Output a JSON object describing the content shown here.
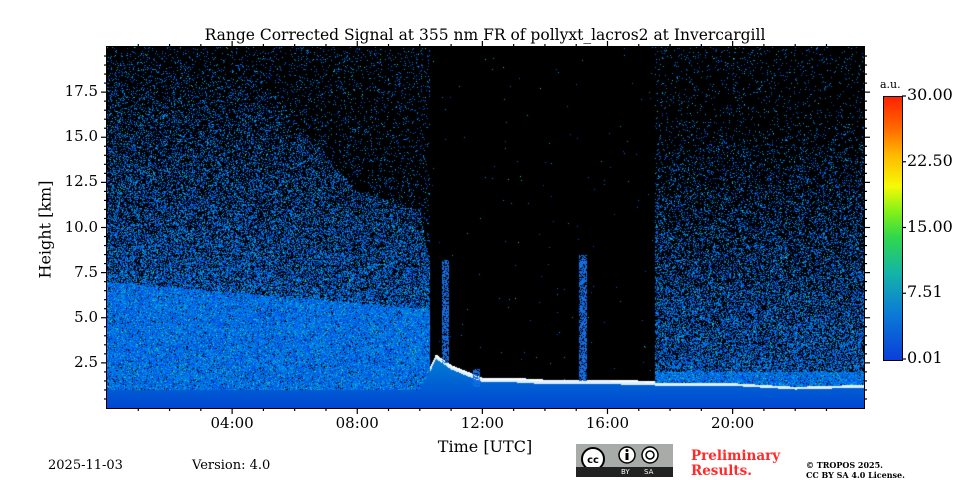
{
  "chart_data": {
    "type": "heatmap",
    "title": "Range Corrected Signal at 355 nm FR of pollyxt_lacros2 at Invercargill",
    "xlabel": "Time [UTC]",
    "ylabel": "Height [km]",
    "xlim_hours": [
      0,
      24.2
    ],
    "ylim": [
      0,
      20
    ],
    "xticks": [
      {
        "v": 4,
        "label": "04:00"
      },
      {
        "v": 8,
        "label": "08:00"
      },
      {
        "v": 12,
        "label": "12:00"
      },
      {
        "v": 16,
        "label": "16:00"
      },
      {
        "v": 20,
        "label": "20:00"
      }
    ],
    "yticks": [
      {
        "v": 2.5,
        "label": "2.5"
      },
      {
        "v": 5,
        "label": "5.0"
      },
      {
        "v": 7.5,
        "label": "7.5"
      },
      {
        "v": 10,
        "label": "10.0"
      },
      {
        "v": 12.5,
        "label": "12.5"
      },
      {
        "v": 15,
        "label": "15.0"
      },
      {
        "v": 17.5,
        "label": "17.5"
      }
    ],
    "colorbar": {
      "unit": "a.u.",
      "min": 0.01,
      "max": 30.0,
      "ticks": [
        "0.01",
        "7.51",
        "15.00",
        "22.50",
        "30.00"
      ],
      "colors": [
        "#0a3fd8",
        "#14b4a8",
        "#7ef01a",
        "#f6fa06",
        "#ff2200"
      ]
    },
    "boundary_layer_top_km": {
      "hours": [
        0,
        2,
        4,
        6,
        8,
        10,
        10.5,
        11,
        12,
        13,
        14,
        16,
        18,
        20,
        22,
        24
      ],
      "values": [
        1.0,
        1.0,
        1.0,
        1.0,
        1.0,
        1.0,
        2.9,
        2.3,
        1.6,
        1.6,
        1.5,
        1.5,
        1.4,
        1.4,
        1.2,
        1.3
      ]
    },
    "signal_extent_km": {
      "hours": [
        0,
        4,
        8,
        10,
        10.3,
        11,
        16,
        17.5,
        20,
        24
      ],
      "values": [
        20,
        20,
        12,
        11,
        8,
        0,
        0,
        20,
        20,
        20
      ]
    },
    "cloud_events": [
      {
        "hour": 15.2,
        "top_km": 8.5,
        "base_km": 1.5
      },
      {
        "hour": 10.8,
        "top_km": 8.2,
        "base_km": 2.5
      },
      {
        "hour": 11.8,
        "top_km": 2.2,
        "base_km": 1.2
      }
    ]
  },
  "footer": {
    "date": "2025-11-03",
    "version": "Version: 4.0",
    "license_badge": {
      "by": "BY",
      "sa": "SA"
    },
    "preliminary": [
      "Preliminary",
      "Results."
    ],
    "copyright": [
      "© TROPOS 2025.",
      "CC BY SA 4.0 License."
    ]
  }
}
